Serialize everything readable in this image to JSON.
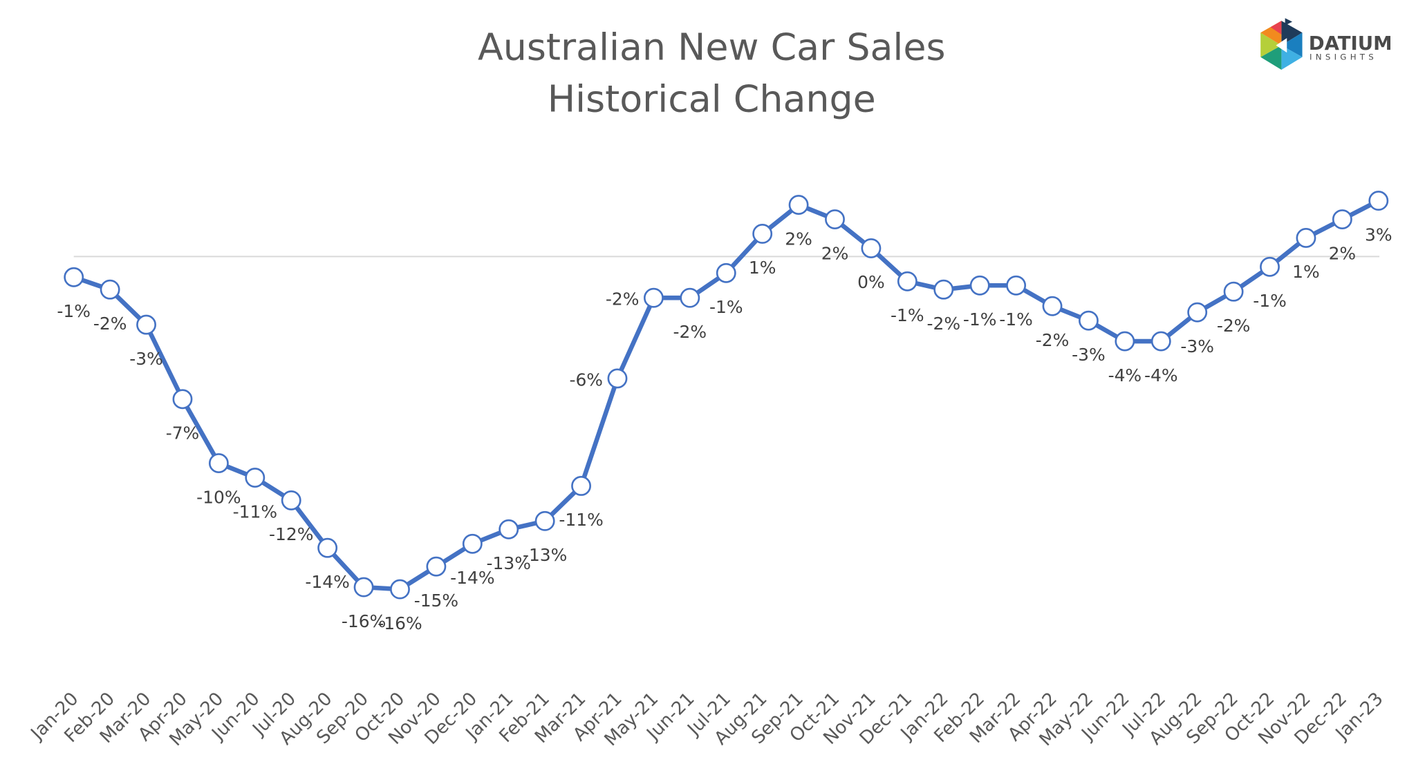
{
  "chart_data": {
    "type": "line",
    "title": [
      "Australian New Car Sales",
      "Historical Change"
    ],
    "xlabel": "",
    "ylabel": "",
    "categories": [
      "Jan-20",
      "Feb-20",
      "Mar-20",
      "Apr-20",
      "May-20",
      "Jun-20",
      "Jul-20",
      "Aug-20",
      "Sep-20",
      "Oct-20",
      "Nov-20",
      "Dec-20",
      "Jan-21",
      "Feb-21",
      "Mar-21",
      "Apr-21",
      "May-21",
      "Jun-21",
      "Jul-21",
      "Aug-21",
      "Sep-21",
      "Oct-21",
      "Nov-21",
      "Dec-21",
      "Jan-22",
      "Feb-22",
      "Mar-22",
      "Apr-22",
      "May-22",
      "Jun-22",
      "Jul-22",
      "Aug-22",
      "Sep-22",
      "Oct-22",
      "Nov-22",
      "Dec-22",
      "Jan-23"
    ],
    "series": [
      {
        "values": [
          -1.0,
          -1.6,
          -3.3,
          -6.9,
          -10.0,
          -10.7,
          -11.8,
          -14.1,
          -16.0,
          -16.1,
          -15.0,
          -13.9,
          -13.2,
          -12.8,
          -11.1,
          -5.9,
          -2.0,
          -2.0,
          -0.8,
          1.1,
          2.5,
          1.8,
          0.4,
          -1.2,
          -1.6,
          -1.4,
          -1.4,
          -2.4,
          -3.1,
          -4.1,
          -4.1,
          -2.7,
          -1.7,
          -0.5,
          0.9,
          1.8,
          2.7
        ],
        "labels": [
          "-1%",
          "-2%",
          "-3%",
          "-7%",
          "-10%",
          "-11%",
          "-12%",
          "-14%",
          "-16%",
          "-16%",
          "-15%",
          "-14%",
          "-13%",
          "-13%",
          "-11%",
          "-6%",
          "-2%",
          "-2%",
          "-1%",
          "1%",
          "2%",
          "2%",
          "0%",
          "-1%",
          "-2%",
          "-1%",
          "-1%",
          "-2%",
          "-3%",
          "-4%",
          "-4%",
          "-3%",
          "-2%",
          "-1%",
          "1%",
          "2%",
          "3%"
        ],
        "color": "#4472C4"
      }
    ],
    "ylim": [
      -21,
      3
    ],
    "zero_line": true,
    "grid": false,
    "legend": "none",
    "y_axis_visible": false
  },
  "logo": {
    "name": "DATIUM",
    "sub": "INSIGHTS"
  }
}
